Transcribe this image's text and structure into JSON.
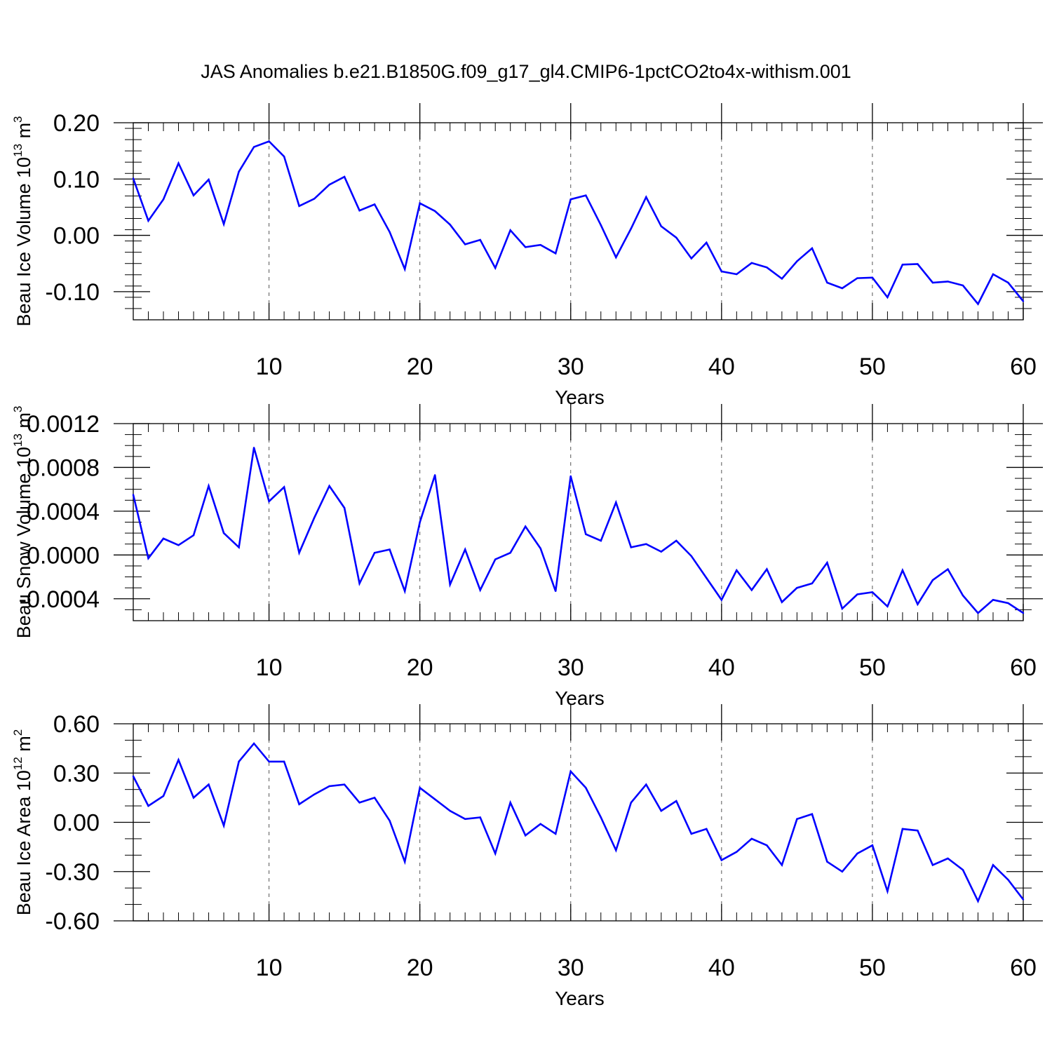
{
  "title": "JAS Anomalies b.e21.B1850G.f09_g17_gl4.CMIP6-1pctCO2to4x-withism.001",
  "colors": {
    "series": "#0000ff",
    "axis": "#000000",
    "grid": "#555555"
  },
  "chart_data": [
    {
      "type": "line",
      "ylabel": "Beau Ice Volume 10",
      "ylabel_exp": "13",
      "ylabel_unit": " m",
      "ylabel_unit_exp": "3",
      "xlabel": "Years",
      "xlim": [
        1,
        60
      ],
      "ylim": [
        -0.15,
        0.2
      ],
      "grid": "vertical dashed at x ticks",
      "xticks": [
        10,
        20,
        30,
        40,
        50,
        60
      ],
      "xtick_labels": [
        "10",
        "20",
        "30",
        "40",
        "50",
        "60"
      ],
      "yticks": [
        -0.1,
        0.0,
        0.1,
        0.2
      ],
      "ytick_labels": [
        "-0.10",
        "0.00",
        "0.10",
        "0.20"
      ],
      "yminor": 0.02,
      "x": [
        1,
        2,
        3,
        4,
        5,
        6,
        7,
        8,
        9,
        10,
        11,
        12,
        13,
        14,
        15,
        16,
        17,
        18,
        19,
        20,
        21,
        22,
        23,
        24,
        25,
        26,
        27,
        28,
        29,
        30,
        31,
        32,
        33,
        34,
        35,
        36,
        37,
        38,
        39,
        40,
        41,
        42,
        43,
        44,
        45,
        46,
        47,
        48,
        49,
        50,
        51,
        52,
        53,
        54,
        55,
        56,
        57,
        58,
        59,
        60
      ],
      "values": [
        0.101,
        0.026,
        0.064,
        0.128,
        0.071,
        0.099,
        0.02,
        0.113,
        0.157,
        0.167,
        0.14,
        0.052,
        0.065,
        0.09,
        0.104,
        0.044,
        0.055,
        0.006,
        -0.06,
        0.057,
        0.043,
        0.019,
        -0.016,
        -0.008,
        -0.058,
        0.009,
        -0.021,
        -0.017,
        -0.032,
        0.064,
        0.071,
        0.018,
        -0.039,
        0.012,
        0.068,
        0.016,
        -0.004,
        -0.041,
        -0.013,
        -0.064,
        -0.069,
        -0.049,
        -0.057,
        -0.077,
        -0.046,
        -0.023,
        -0.084,
        -0.094,
        -0.076,
        -0.075,
        -0.11,
        -0.052,
        -0.051,
        -0.084,
        -0.082,
        -0.089,
        -0.122,
        -0.069,
        -0.084,
        -0.117
      ]
    },
    {
      "type": "line",
      "ylabel": "Beau Snow Volume 10",
      "ylabel_exp": "13",
      "ylabel_unit": " m",
      "ylabel_unit_exp": "3",
      "xlabel": "Years",
      "xlim": [
        1,
        60
      ],
      "ylim": [
        -0.0006,
        0.0012
      ],
      "grid": "vertical dashed at x ticks",
      "xticks": [
        10,
        20,
        30,
        40,
        50,
        60
      ],
      "xtick_labels": [
        "10",
        "20",
        "30",
        "40",
        "50",
        "60"
      ],
      "yticks": [
        -0.0004,
        0.0,
        0.0004,
        0.0008,
        0.0012
      ],
      "ytick_labels": [
        "-0.0004",
        "0.0000",
        "0.0004",
        "0.0008",
        "0.0012"
      ],
      "yminor": 0.0001,
      "x": [
        1,
        2,
        3,
        4,
        5,
        6,
        7,
        8,
        9,
        10,
        11,
        12,
        13,
        14,
        15,
        16,
        17,
        18,
        19,
        20,
        21,
        22,
        23,
        24,
        25,
        26,
        27,
        28,
        29,
        30,
        31,
        32,
        33,
        34,
        35,
        36,
        37,
        38,
        39,
        40,
        41,
        42,
        43,
        44,
        45,
        46,
        47,
        48,
        49,
        50,
        51,
        52,
        53,
        54,
        55,
        56,
        57,
        58,
        59,
        60
      ],
      "values": [
        0.00055,
        -3e-05,
        0.00015,
        9e-05,
        0.00018,
        0.00063,
        0.0002,
        7e-05,
        0.00098,
        0.00049,
        0.00062,
        2e-05,
        0.00034,
        0.00063,
        0.00043,
        -0.00026,
        2e-05,
        5e-05,
        -0.00033,
        0.0003,
        0.00073,
        -0.00027,
        5e-05,
        -0.00032,
        -4e-05,
        2e-05,
        0.00026,
        6e-05,
        -0.00033,
        0.00072,
        0.00019,
        0.00013,
        0.00048,
        7e-05,
        0.0001,
        3e-05,
        0.00013,
        -1e-05,
        -0.00021,
        -0.00041,
        -0.00014,
        -0.00032,
        -0.00013,
        -0.00043,
        -0.0003,
        -0.00026,
        -7e-05,
        -0.00049,
        -0.00036,
        -0.00034,
        -0.00047,
        -0.00014,
        -0.00045,
        -0.00023,
        -0.00013,
        -0.00037,
        -0.00053,
        -0.00041,
        -0.00044,
        -0.00053
      ]
    },
    {
      "type": "line",
      "ylabel": "Beau Ice Area 10",
      "ylabel_exp": "12",
      "ylabel_unit": " m",
      "ylabel_unit_exp": "2",
      "xlabel": "Years",
      "xlim": [
        1,
        60
      ],
      "ylim": [
        -0.6,
        0.6
      ],
      "grid": "vertical dashed at x ticks",
      "xticks": [
        10,
        20,
        30,
        40,
        50,
        60
      ],
      "xtick_labels": [
        "10",
        "20",
        "30",
        "40",
        "50",
        "60"
      ],
      "yticks": [
        -0.6,
        -0.3,
        0.0,
        0.3,
        0.6
      ],
      "ytick_labels": [
        "-0.60",
        "-0.30",
        "0.00",
        "0.30",
        "0.60"
      ],
      "yminor": 0.1,
      "x": [
        1,
        2,
        3,
        4,
        5,
        6,
        7,
        8,
        9,
        10,
        11,
        12,
        13,
        14,
        15,
        16,
        17,
        18,
        19,
        20,
        21,
        22,
        23,
        24,
        25,
        26,
        27,
        28,
        29,
        30,
        31,
        32,
        33,
        34,
        35,
        36,
        37,
        38,
        39,
        40,
        41,
        42,
        43,
        44,
        45,
        46,
        47,
        48,
        49,
        50,
        51,
        52,
        53,
        54,
        55,
        56,
        57,
        58,
        59,
        60
      ],
      "values": [
        0.28,
        0.1,
        0.16,
        0.38,
        0.15,
        0.23,
        -0.02,
        0.37,
        0.48,
        0.37,
        0.37,
        0.11,
        0.17,
        0.22,
        0.23,
        0.12,
        0.15,
        0.01,
        -0.24,
        0.21,
        0.14,
        0.07,
        0.02,
        0.03,
        -0.19,
        0.12,
        -0.08,
        -0.01,
        -0.07,
        0.31,
        0.21,
        0.03,
        -0.17,
        0.12,
        0.23,
        0.07,
        0.13,
        -0.07,
        -0.04,
        -0.23,
        -0.18,
        -0.1,
        -0.14,
        -0.26,
        0.02,
        0.05,
        -0.24,
        -0.3,
        -0.19,
        -0.14,
        -0.42,
        -0.04,
        -0.05,
        -0.26,
        -0.22,
        -0.29,
        -0.48,
        -0.26,
        -0.35,
        -0.47
      ]
    }
  ]
}
